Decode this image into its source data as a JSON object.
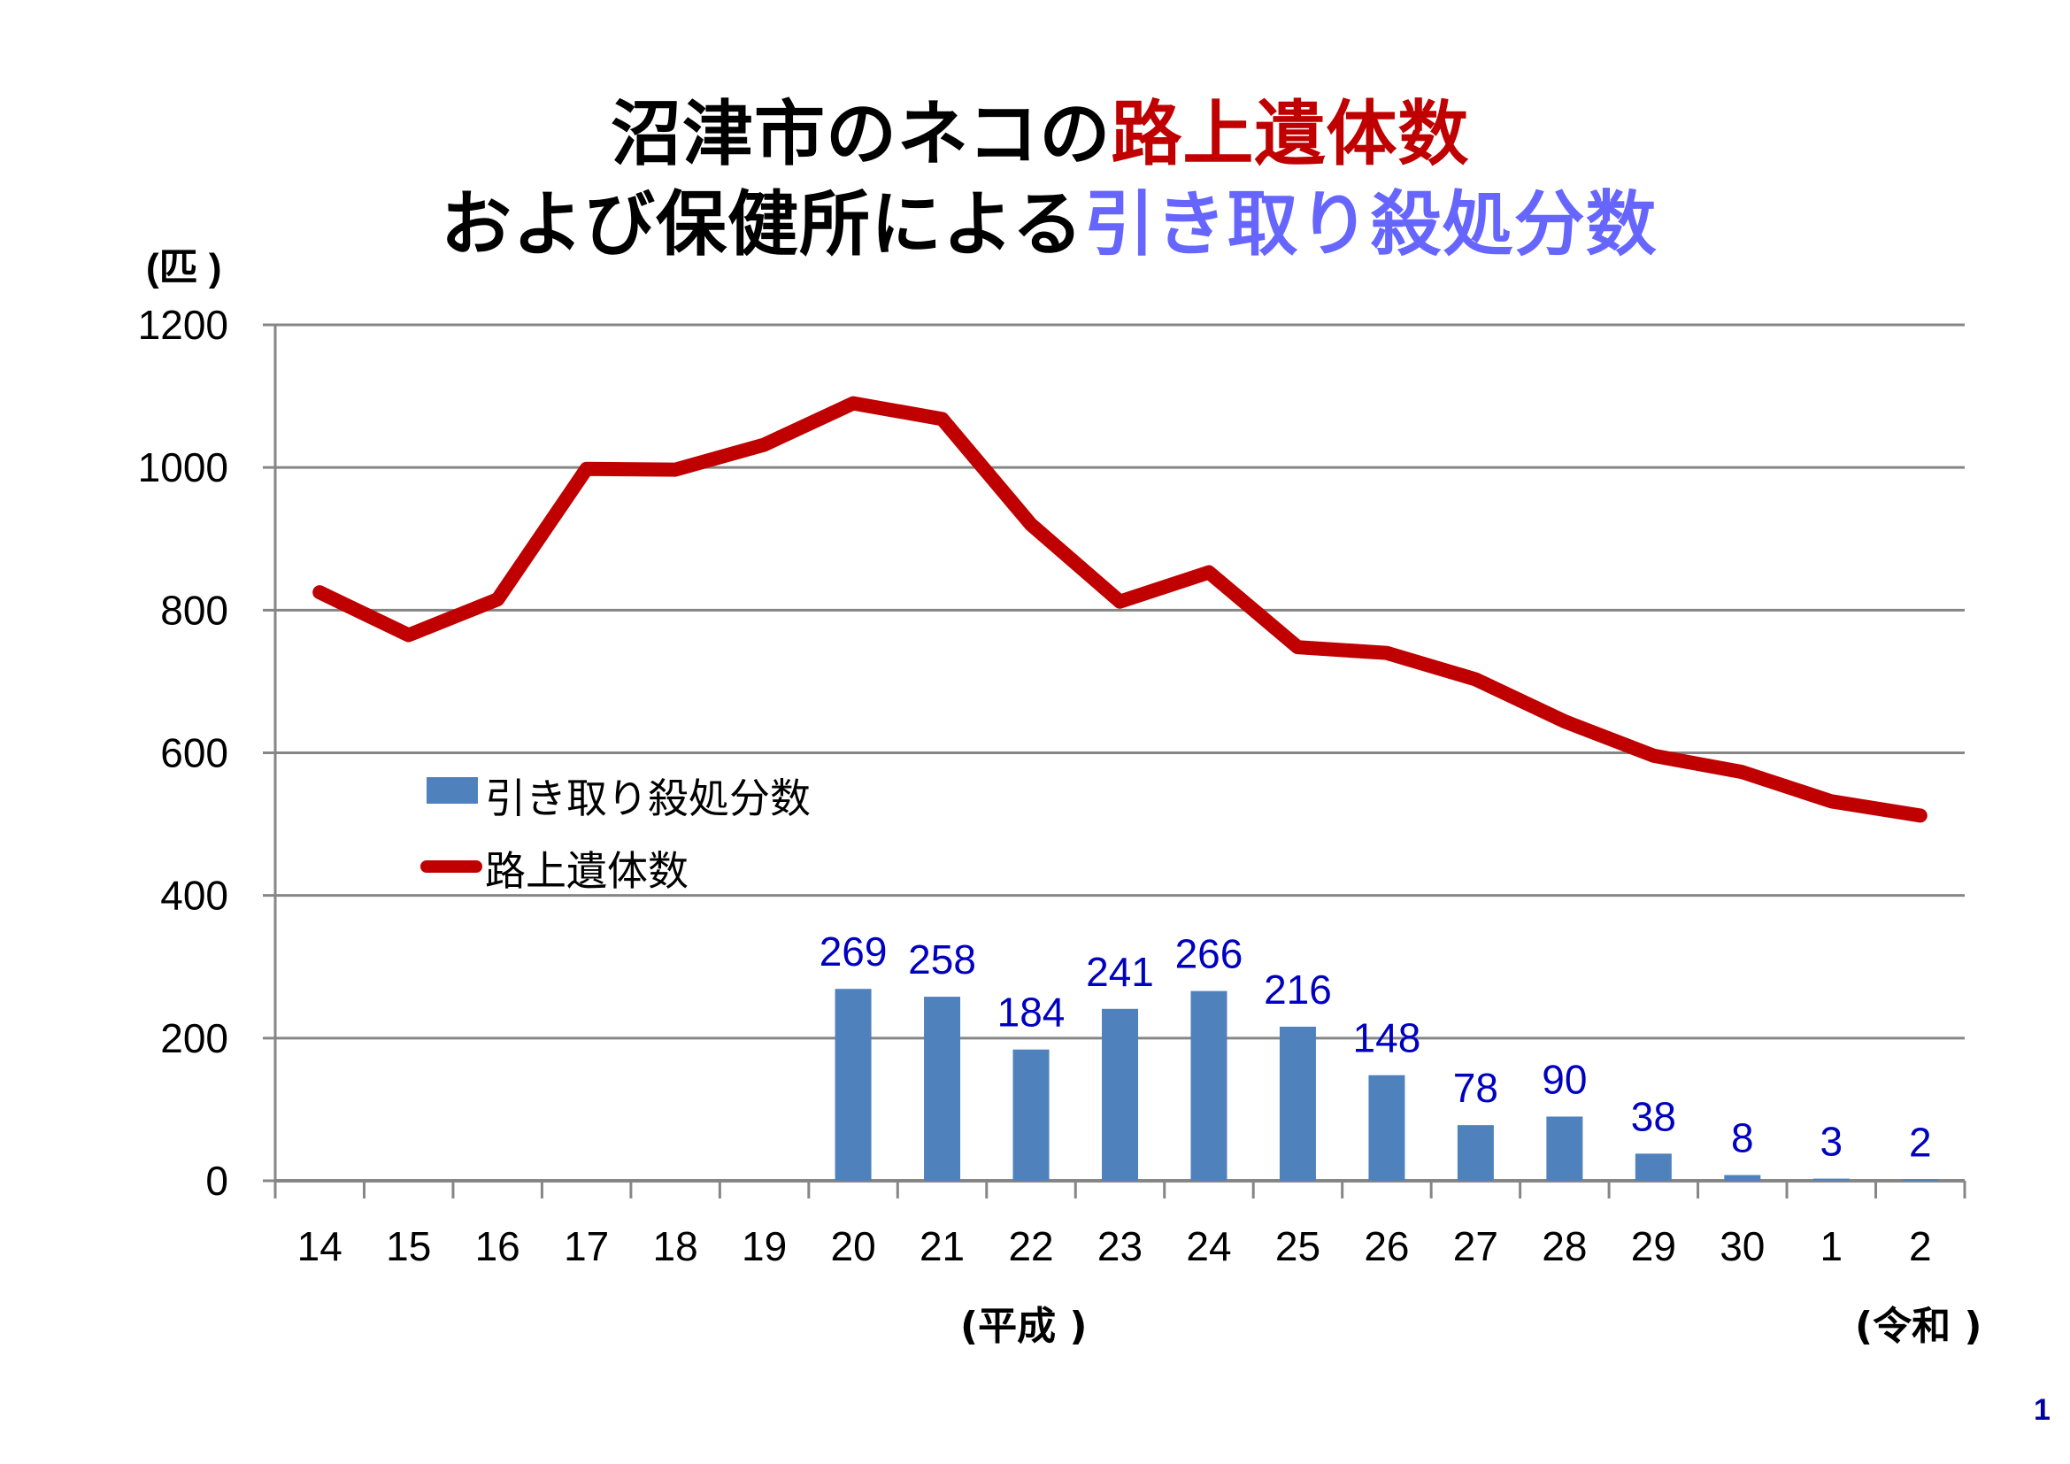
{
  "title": {
    "line1": [
      {
        "text": "沼津市のネコの",
        "color": "#000000"
      },
      {
        "text": "路上遺体数",
        "color": "#c00000"
      }
    ],
    "line2": [
      {
        "text": "および保健所による",
        "color": "#000000"
      },
      {
        "text": "引き取り殺処分数",
        "color": "#6666ff"
      }
    ]
  },
  "page_number": "1",
  "chart_data": {
    "type": "bar+line",
    "title": "沼津市のネコの路上遺体数および保健所による引き取り殺処分数",
    "ylabel": "(匹 )",
    "xlabel_era_labels": [
      "(平成 )",
      "(令和 )"
    ],
    "ylim": [
      0,
      1200
    ],
    "y_ticks": [
      "0",
      "200",
      "400",
      "600",
      "800",
      "1000",
      "1200"
    ],
    "grid": true,
    "legend_position": "center-left",
    "categories": [
      "14",
      "15",
      "16",
      "17",
      "18",
      "19",
      "20",
      "21",
      "22",
      "23",
      "24",
      "25",
      "26",
      "27",
      "28",
      "29",
      "30",
      "1",
      "2"
    ],
    "series": [
      {
        "name": "引き取り殺処分数",
        "type": "bar",
        "color": "#4f81bd",
        "label_color": "#0000c0",
        "values": [
          null,
          null,
          null,
          null,
          null,
          null,
          269,
          258,
          184,
          241,
          266,
          216,
          148,
          78,
          90,
          38,
          8,
          3,
          2
        ],
        "labels": [
          "",
          "",
          "",
          "",
          "",
          "",
          "269",
          "258",
          "184",
          "241",
          "266",
          "216",
          "148",
          "78",
          "90",
          "38",
          "8",
          "3",
          "2"
        ]
      },
      {
        "name": "路上遺体数",
        "type": "line",
        "color": "#c00000",
        "values": [
          825,
          765,
          815,
          998,
          997,
          1032,
          1090,
          1068,
          920,
          812,
          853,
          748,
          740,
          703,
          644,
          596,
          573,
          532,
          512
        ]
      }
    ]
  }
}
